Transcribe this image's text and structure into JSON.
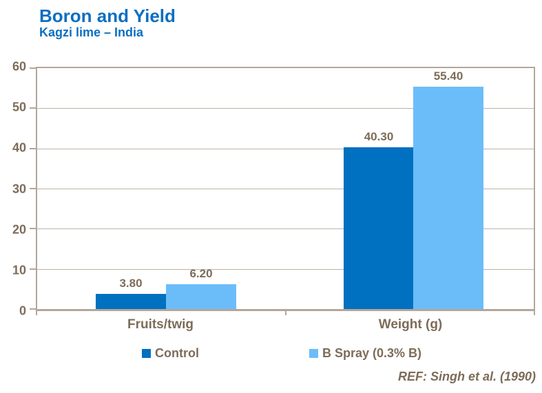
{
  "header": {
    "title": "Boron and Yield",
    "subtitle": "Kagzi lime – India"
  },
  "footer": {
    "reference": "REF: Singh et al. (1990)"
  },
  "colors": {
    "title_blue": "#0C6FC1",
    "control_bar": "#0070C0",
    "b_spray_bar": "#6BBDFA",
    "label_brown": "#7D6C59",
    "axis_gray": "#B3A69A",
    "background": "#FFFFFF"
  },
  "chart_data": {
    "type": "bar",
    "title": "Boron and Yield",
    "subtitle": "Kagzi lime – India",
    "categories": [
      "Fruits/twig",
      "Weight (g)"
    ],
    "series": [
      {
        "name": "Control",
        "color": "#0070C0",
        "values": [
          3.8,
          40.3
        ],
        "labels": [
          "3.80",
          "40.30"
        ]
      },
      {
        "name": "B Spray (0.3% B)",
        "color": "#6BBDFA",
        "values": [
          6.2,
          55.4
        ],
        "labels": [
          "6.20",
          "55.40"
        ]
      }
    ],
    "xlabel": "",
    "ylabel": "",
    "ylim": [
      0,
      60
    ],
    "yticks": [
      "0",
      "10",
      "20",
      "30",
      "40",
      "50",
      "60"
    ],
    "grid": "horizontal",
    "legend_position": "bottom",
    "annotation": "REF: Singh et al. (1990)"
  }
}
